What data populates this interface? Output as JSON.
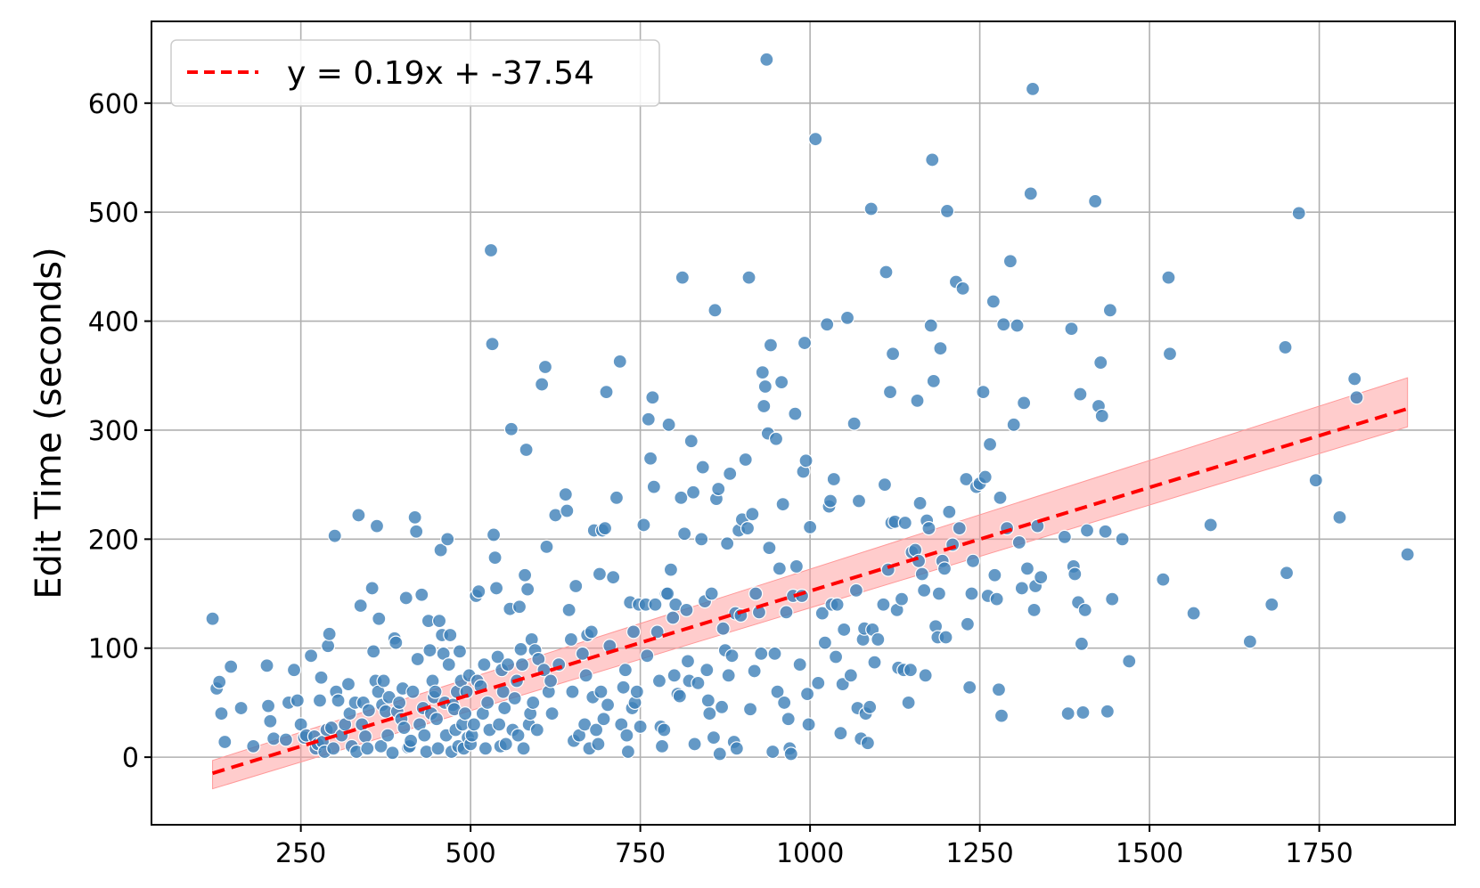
{
  "chart_data": {
    "type": "scatter",
    "xlabel": "",
    "ylabel": "Edit Time (seconds)",
    "xlim": [
      30,
      1950
    ],
    "ylim": [
      -62,
      675
    ],
    "xticks": [
      250,
      500,
      750,
      1000,
      1250,
      1500,
      1750
    ],
    "yticks": [
      0,
      100,
      200,
      300,
      400,
      500,
      600
    ],
    "grid": true,
    "legend_position": "top-left",
    "colors": {
      "points": "#3d7fb8",
      "fit": "#ff0000",
      "band": "#ff9999"
    },
    "fit": {
      "label": "y = 0.19x + -37.54",
      "slope": 0.19,
      "intercept": -37.54,
      "x_range": [
        120,
        1880
      ],
      "ci_upper": [
        [
          120,
          -3
        ],
        [
          1880,
          348
        ]
      ],
      "ci_lower": [
        [
          120,
          -29
        ],
        [
          1880,
          303
        ]
      ]
    },
    "points": [
      [
        120,
        127
      ],
      [
        126,
        63
      ],
      [
        130,
        69
      ],
      [
        133,
        40
      ],
      [
        138,
        14
      ],
      [
        147,
        83
      ],
      [
        162,
        45
      ],
      [
        180,
        10
      ],
      [
        200,
        84
      ],
      [
        202,
        47
      ],
      [
        205,
        33
      ],
      [
        210,
        17
      ],
      [
        228,
        16
      ],
      [
        232,
        50
      ],
      [
        240,
        80
      ],
      [
        245,
        52
      ],
      [
        250,
        30
      ],
      [
        255,
        18
      ],
      [
        258,
        20
      ],
      [
        265,
        93
      ],
      [
        270,
        19
      ],
      [
        272,
        8
      ],
      [
        275,
        12
      ],
      [
        278,
        52
      ],
      [
        280,
        73
      ],
      [
        282,
        14
      ],
      [
        285,
        5
      ],
      [
        288,
        25
      ],
      [
        290,
        102
      ],
      [
        292,
        113
      ],
      [
        295,
        27
      ],
      [
        298,
        8
      ],
      [
        300,
        203
      ],
      [
        302,
        60
      ],
      [
        305,
        52
      ],
      [
        310,
        20
      ],
      [
        315,
        30
      ],
      [
        320,
        67
      ],
      [
        322,
        40
      ],
      [
        325,
        10
      ],
      [
        330,
        50
      ],
      [
        332,
        5
      ],
      [
        335,
        222
      ],
      [
        338,
        139
      ],
      [
        340,
        30
      ],
      [
        342,
        50
      ],
      [
        345,
        19
      ],
      [
        348,
        8
      ],
      [
        350,
        43
      ],
      [
        355,
        155
      ],
      [
        357,
        97
      ],
      [
        360,
        70
      ],
      [
        362,
        212
      ],
      [
        364,
        60
      ],
      [
        365,
        127
      ],
      [
        368,
        10
      ],
      [
        370,
        48
      ],
      [
        372,
        70
      ],
      [
        375,
        42
      ],
      [
        378,
        20
      ],
      [
        380,
        55
      ],
      [
        385,
        4
      ],
      [
        388,
        109
      ],
      [
        390,
        105
      ],
      [
        392,
        42
      ],
      [
        395,
        50
      ],
      [
        398,
        35
      ],
      [
        400,
        63
      ],
      [
        402,
        27
      ],
      [
        405,
        146
      ],
      [
        408,
        9
      ],
      [
        410,
        10
      ],
      [
        412,
        15
      ],
      [
        415,
        60
      ],
      [
        418,
        220
      ],
      [
        420,
        207
      ],
      [
        422,
        90
      ],
      [
        425,
        30
      ],
      [
        428,
        149
      ],
      [
        430,
        45
      ],
      [
        432,
        20
      ],
      [
        435,
        5
      ],
      [
        438,
        125
      ],
      [
        440,
        98
      ],
      [
        442,
        40
      ],
      [
        444,
        70
      ],
      [
        446,
        55
      ],
      [
        448,
        60
      ],
      [
        450,
        35
      ],
      [
        452,
        8
      ],
      [
        454,
        125
      ],
      [
        456,
        190
      ],
      [
        458,
        112
      ],
      [
        460,
        95
      ],
      [
        462,
        50
      ],
      [
        464,
        20
      ],
      [
        466,
        200
      ],
      [
        468,
        85
      ],
      [
        470,
        112
      ],
      [
        472,
        5
      ],
      [
        474,
        48
      ],
      [
        476,
        44
      ],
      [
        478,
        25
      ],
      [
        480,
        60
      ],
      [
        482,
        10
      ],
      [
        484,
        97
      ],
      [
        486,
        70
      ],
      [
        488,
        30
      ],
      [
        490,
        8
      ],
      [
        492,
        40
      ],
      [
        494,
        60
      ],
      [
        496,
        18
      ],
      [
        498,
        75
      ],
      [
        500,
        12
      ],
      [
        502,
        20
      ],
      [
        505,
        30
      ],
      [
        508,
        148
      ],
      [
        510,
        70
      ],
      [
        512,
        152
      ],
      [
        515,
        65
      ],
      [
        518,
        40
      ],
      [
        520,
        85
      ],
      [
        522,
        8
      ],
      [
        525,
        50
      ],
      [
        528,
        25
      ],
      [
        530,
        465
      ],
      [
        532,
        379
      ],
      [
        534,
        204
      ],
      [
        536,
        183
      ],
      [
        538,
        155
      ],
      [
        540,
        92
      ],
      [
        542,
        30
      ],
      [
        544,
        10
      ],
      [
        546,
        80
      ],
      [
        548,
        60
      ],
      [
        550,
        45
      ],
      [
        552,
        12
      ],
      [
        555,
        85
      ],
      [
        558,
        136
      ],
      [
        560,
        301
      ],
      [
        562,
        25
      ],
      [
        565,
        54
      ],
      [
        568,
        70
      ],
      [
        570,
        20
      ],
      [
        572,
        138
      ],
      [
        574,
        99
      ],
      [
        576,
        85
      ],
      [
        578,
        8
      ],
      [
        580,
        167
      ],
      [
        582,
        282
      ],
      [
        584,
        154
      ],
      [
        586,
        30
      ],
      [
        588,
        40
      ],
      [
        590,
        108
      ],
      [
        592,
        50
      ],
      [
        595,
        98
      ],
      [
        598,
        25
      ],
      [
        600,
        90
      ],
      [
        605,
        342
      ],
      [
        608,
        80
      ],
      [
        610,
        358
      ],
      [
        612,
        193
      ],
      [
        615,
        60
      ],
      [
        618,
        70
      ],
      [
        620,
        40
      ],
      [
        625,
        222
      ],
      [
        630,
        85
      ],
      [
        640,
        241
      ],
      [
        642,
        226
      ],
      [
        645,
        135
      ],
      [
        648,
        108
      ],
      [
        650,
        60
      ],
      [
        652,
        15
      ],
      [
        655,
        157
      ],
      [
        660,
        20
      ],
      [
        665,
        95
      ],
      [
        668,
        30
      ],
      [
        670,
        75
      ],
      [
        672,
        112
      ],
      [
        675,
        8
      ],
      [
        678,
        115
      ],
      [
        680,
        55
      ],
      [
        682,
        208
      ],
      [
        685,
        25
      ],
      [
        688,
        12
      ],
      [
        690,
        168
      ],
      [
        692,
        60
      ],
      [
        694,
        208
      ],
      [
        696,
        35
      ],
      [
        698,
        210
      ],
      [
        700,
        335
      ],
      [
        702,
        48
      ],
      [
        705,
        102
      ],
      [
        710,
        165
      ],
      [
        715,
        238
      ],
      [
        720,
        363
      ],
      [
        722,
        30
      ],
      [
        725,
        64
      ],
      [
        728,
        80
      ],
      [
        730,
        20
      ],
      [
        732,
        5
      ],
      [
        735,
        142
      ],
      [
        738,
        45
      ],
      [
        740,
        115
      ],
      [
        742,
        50
      ],
      [
        745,
        60
      ],
      [
        748,
        140
      ],
      [
        750,
        28
      ],
      [
        755,
        213
      ],
      [
        758,
        140
      ],
      [
        760,
        93
      ],
      [
        762,
        310
      ],
      [
        765,
        274
      ],
      [
        768,
        330
      ],
      [
        770,
        248
      ],
      [
        772,
        140
      ],
      [
        775,
        115
      ],
      [
        778,
        70
      ],
      [
        780,
        28
      ],
      [
        782,
        10
      ],
      [
        785,
        25
      ],
      [
        788,
        150
      ],
      [
        790,
        150
      ],
      [
        792,
        305
      ],
      [
        795,
        172
      ],
      [
        798,
        128
      ],
      [
        800,
        75
      ],
      [
        802,
        140
      ],
      [
        805,
        58
      ],
      [
        808,
        56
      ],
      [
        810,
        238
      ],
      [
        812,
        440
      ],
      [
        815,
        205
      ],
      [
        818,
        135
      ],
      [
        820,
        88
      ],
      [
        822,
        70
      ],
      [
        825,
        290
      ],
      [
        828,
        243
      ],
      [
        830,
        12
      ],
      [
        835,
        68
      ],
      [
        840,
        200
      ],
      [
        842,
        266
      ],
      [
        845,
        143
      ],
      [
        848,
        80
      ],
      [
        850,
        52
      ],
      [
        852,
        40
      ],
      [
        855,
        150
      ],
      [
        858,
        18
      ],
      [
        860,
        410
      ],
      [
        862,
        237
      ],
      [
        865,
        246
      ],
      [
        867,
        3
      ],
      [
        870,
        46
      ],
      [
        872,
        118
      ],
      [
        875,
        98
      ],
      [
        878,
        196
      ],
      [
        880,
        75
      ],
      [
        882,
        260
      ],
      [
        885,
        93
      ],
      [
        888,
        14
      ],
      [
        890,
        132
      ],
      [
        892,
        8
      ],
      [
        895,
        208
      ],
      [
        898,
        130
      ],
      [
        900,
        218
      ],
      [
        905,
        273
      ],
      [
        908,
        210
      ],
      [
        910,
        440
      ],
      [
        912,
        44
      ],
      [
        915,
        223
      ],
      [
        918,
        79
      ],
      [
        920,
        150
      ],
      [
        925,
        133
      ],
      [
        928,
        95
      ],
      [
        930,
        353
      ],
      [
        932,
        322
      ],
      [
        934,
        340
      ],
      [
        936,
        640
      ],
      [
        938,
        297
      ],
      [
        940,
        192
      ],
      [
        942,
        378
      ],
      [
        945,
        5
      ],
      [
        948,
        95
      ],
      [
        950,
        292
      ],
      [
        952,
        60
      ],
      [
        955,
        173
      ],
      [
        958,
        344
      ],
      [
        960,
        232
      ],
      [
        962,
        50
      ],
      [
        965,
        133
      ],
      [
        968,
        35
      ],
      [
        970,
        8
      ],
      [
        972,
        3
      ],
      [
        975,
        148
      ],
      [
        978,
        315
      ],
      [
        980,
        175
      ],
      [
        985,
        85
      ],
      [
        988,
        148
      ],
      [
        990,
        262
      ],
      [
        992,
        380
      ],
      [
        994,
        272
      ],
      [
        996,
        58
      ],
      [
        998,
        30
      ],
      [
        1000,
        211
      ],
      [
        1008,
        567
      ],
      [
        1012,
        68
      ],
      [
        1018,
        132
      ],
      [
        1022,
        105
      ],
      [
        1025,
        397
      ],
      [
        1028,
        230
      ],
      [
        1030,
        235
      ],
      [
        1032,
        140
      ],
      [
        1035,
        255
      ],
      [
        1038,
        92
      ],
      [
        1040,
        140
      ],
      [
        1045,
        22
      ],
      [
        1048,
        67
      ],
      [
        1050,
        117
      ],
      [
        1055,
        403
      ],
      [
        1060,
        75
      ],
      [
        1065,
        306
      ],
      [
        1068,
        153
      ],
      [
        1070,
        45
      ],
      [
        1072,
        235
      ],
      [
        1075,
        17
      ],
      [
        1078,
        108
      ],
      [
        1080,
        118
      ],
      [
        1082,
        40
      ],
      [
        1085,
        13
      ],
      [
        1088,
        46
      ],
      [
        1090,
        503
      ],
      [
        1092,
        117
      ],
      [
        1095,
        87
      ],
      [
        1100,
        108
      ],
      [
        1108,
        140
      ],
      [
        1110,
        250
      ],
      [
        1112,
        445
      ],
      [
        1115,
        172
      ],
      [
        1118,
        335
      ],
      [
        1120,
        215
      ],
      [
        1122,
        370
      ],
      [
        1125,
        216
      ],
      [
        1128,
        135
      ],
      [
        1130,
        82
      ],
      [
        1135,
        145
      ],
      [
        1138,
        80
      ],
      [
        1140,
        215
      ],
      [
        1145,
        50
      ],
      [
        1148,
        80
      ],
      [
        1150,
        188
      ],
      [
        1155,
        190
      ],
      [
        1158,
        327
      ],
      [
        1160,
        180
      ],
      [
        1162,
        233
      ],
      [
        1165,
        168
      ],
      [
        1168,
        153
      ],
      [
        1170,
        75
      ],
      [
        1172,
        217
      ],
      [
        1175,
        210
      ],
      [
        1178,
        396
      ],
      [
        1180,
        548
      ],
      [
        1182,
        345
      ],
      [
        1185,
        120
      ],
      [
        1188,
        110
      ],
      [
        1190,
        150
      ],
      [
        1192,
        375
      ],
      [
        1195,
        180
      ],
      [
        1198,
        173
      ],
      [
        1200,
        110
      ],
      [
        1202,
        501
      ],
      [
        1205,
        225
      ],
      [
        1210,
        195
      ],
      [
        1215,
        436
      ],
      [
        1220,
        210
      ],
      [
        1225,
        430
      ],
      [
        1230,
        255
      ],
      [
        1232,
        122
      ],
      [
        1235,
        64
      ],
      [
        1238,
        150
      ],
      [
        1240,
        180
      ],
      [
        1245,
        248
      ],
      [
        1250,
        251
      ],
      [
        1255,
        335
      ],
      [
        1258,
        257
      ],
      [
        1262,
        148
      ],
      [
        1265,
        287
      ],
      [
        1270,
        418
      ],
      [
        1272,
        167
      ],
      [
        1275,
        145
      ],
      [
        1278,
        62
      ],
      [
        1280,
        238
      ],
      [
        1282,
        38
      ],
      [
        1285,
        397
      ],
      [
        1290,
        210
      ],
      [
        1295,
        455
      ],
      [
        1300,
        305
      ],
      [
        1305,
        396
      ],
      [
        1308,
        197
      ],
      [
        1312,
        155
      ],
      [
        1315,
        325
      ],
      [
        1320,
        173
      ],
      [
        1325,
        517
      ],
      [
        1328,
        613
      ],
      [
        1330,
        135
      ],
      [
        1332,
        157
      ],
      [
        1335,
        212
      ],
      [
        1340,
        165
      ],
      [
        1375,
        202
      ],
      [
        1380,
        40
      ],
      [
        1385,
        393
      ],
      [
        1388,
        175
      ],
      [
        1390,
        168
      ],
      [
        1395,
        142
      ],
      [
        1398,
        333
      ],
      [
        1400,
        104
      ],
      [
        1402,
        41
      ],
      [
        1405,
        135
      ],
      [
        1408,
        208
      ],
      [
        1420,
        510
      ],
      [
        1425,
        322
      ],
      [
        1428,
        362
      ],
      [
        1430,
        313
      ],
      [
        1435,
        207
      ],
      [
        1438,
        42
      ],
      [
        1442,
        410
      ],
      [
        1445,
        145
      ],
      [
        1460,
        200
      ],
      [
        1470,
        88
      ],
      [
        1520,
        163
      ],
      [
        1528,
        440
      ],
      [
        1530,
        370
      ],
      [
        1565,
        132
      ],
      [
        1590,
        213
      ],
      [
        1648,
        106
      ],
      [
        1680,
        140
      ],
      [
        1700,
        376
      ],
      [
        1702,
        169
      ],
      [
        1720,
        499
      ],
      [
        1745,
        254
      ],
      [
        1780,
        220
      ],
      [
        1802,
        347
      ],
      [
        1805,
        330
      ],
      [
        1880,
        186
      ]
    ]
  }
}
